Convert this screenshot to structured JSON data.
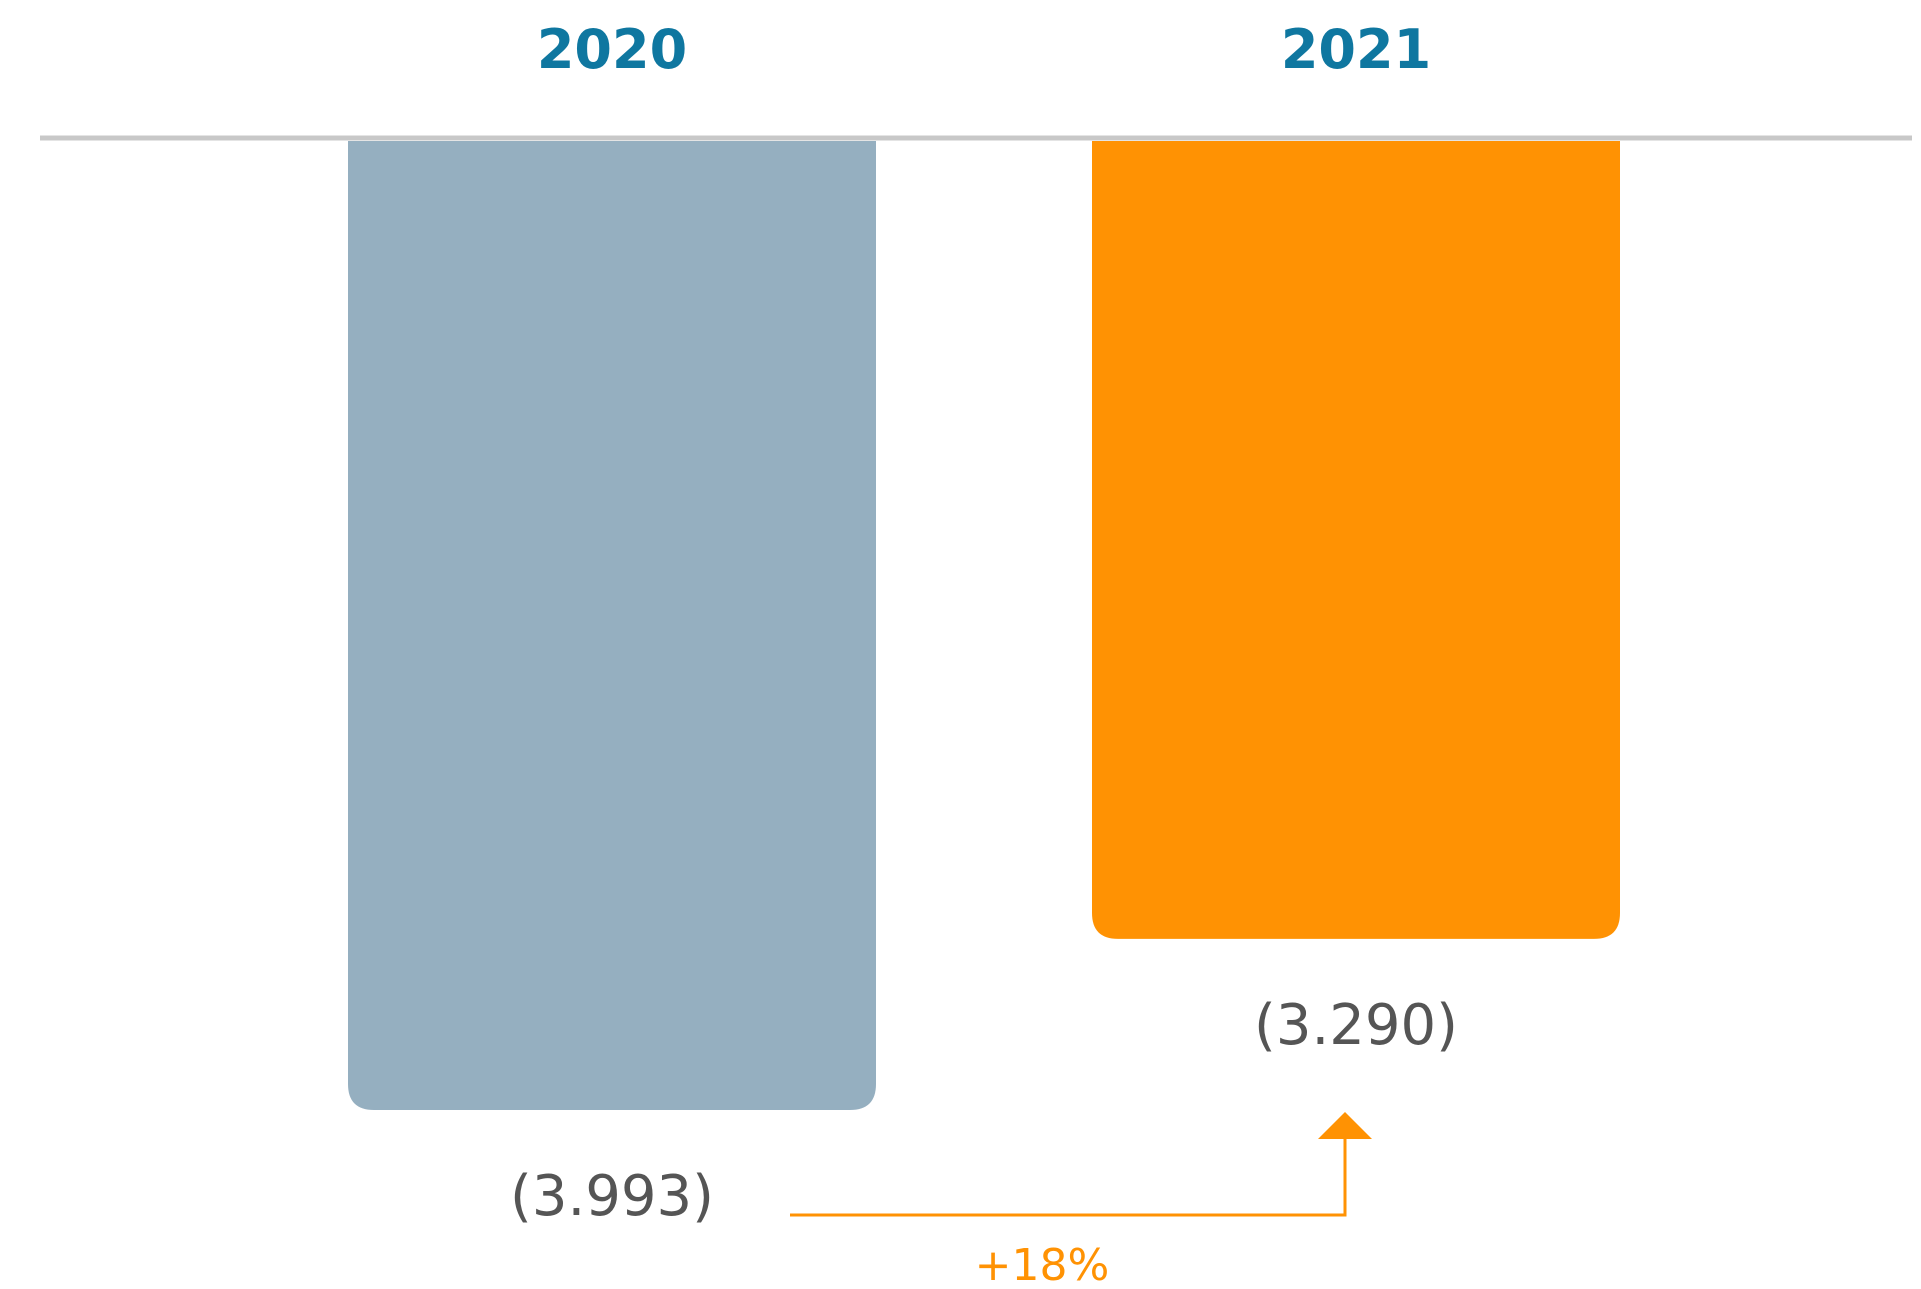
{
  "chart_data": {
    "type": "bar",
    "orientation": "downward",
    "categories": [
      "2020",
      "2021"
    ],
    "values": [
      -3993,
      -3290
    ],
    "value_labels": [
      "(3.993)",
      "(3.290)"
    ],
    "series_colors": [
      "#95AFC0",
      "#FF9203"
    ],
    "category_label_color": "#0F77A0",
    "value_label_color": "#555555",
    "baseline_color": "#C8C8C8",
    "change_indicator": {
      "label": "+18%",
      "color": "#FF9203",
      "direction": "up",
      "from": "2020",
      "to": "2021"
    }
  }
}
